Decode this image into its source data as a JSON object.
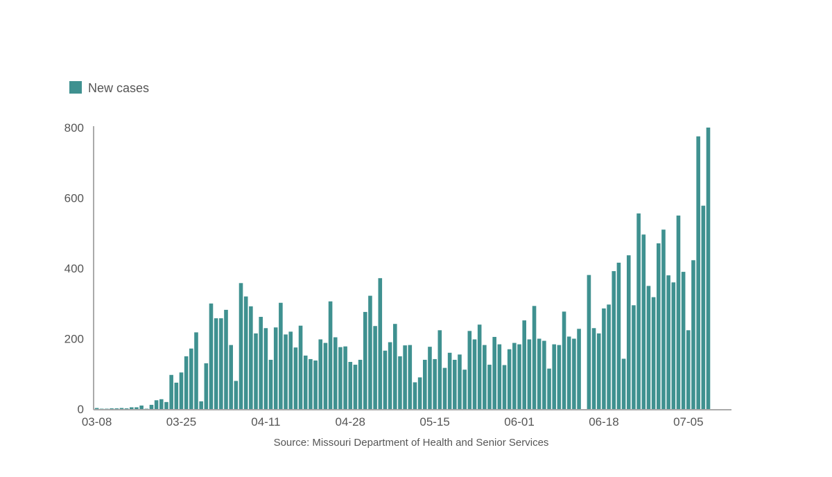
{
  "chart_data": {
    "type": "bar",
    "title": "",
    "xlabel": "",
    "ylabel": "",
    "ylim": [
      0,
      800
    ],
    "yticks": [
      0,
      200,
      400,
      600,
      800
    ],
    "grid": false,
    "legend": {
      "position": "top-left",
      "label": "New cases",
      "color": "#3f9190"
    },
    "start_date": "2020-03-08",
    "x_tick_labels": [
      "03-08",
      "03-25",
      "04-11",
      "04-28",
      "05-15",
      "06-01",
      "06-18",
      "07-05"
    ],
    "x_tick_indices": [
      0,
      17,
      34,
      51,
      68,
      85,
      102,
      119
    ],
    "series": [
      {
        "name": "New cases",
        "color": "#3f9190",
        "values": [
          3,
          1,
          1,
          2,
          2,
          3,
          2,
          5,
          5,
          10,
          1,
          12,
          25,
          28,
          20,
          97,
          75,
          104,
          150,
          172,
          218,
          22,
          130,
          300,
          258,
          258,
          282,
          182,
          80,
          358,
          320,
          292,
          215,
          262,
          230,
          140,
          232,
          302,
          212,
          220,
          175,
          237,
          152,
          142,
          138,
          198,
          188,
          306,
          204,
          176,
          178,
          134,
          126,
          140,
          276,
          322,
          236,
          372,
          166,
          190,
          242,
          150,
          181,
          182,
          76,
          90,
          140,
          177,
          142,
          224,
          117,
          160,
          140,
          155,
          112,
          222,
          198,
          240,
          182,
          126,
          205,
          184,
          125,
          170,
          188,
          184,
          252,
          198,
          293,
          200,
          194,
          115,
          184,
          182,
          277,
          206,
          200,
          228,
          null,
          381,
          230,
          215,
          286,
          297,
          392,
          416,
          143,
          437,
          295,
          556,
          496,
          350,
          318,
          471,
          510,
          380,
          360,
          550,
          390,
          224,
          423,
          775,
          578,
          800
        ]
      }
    ],
    "source": "Source: Missouri Department of Health and Senior Services"
  }
}
